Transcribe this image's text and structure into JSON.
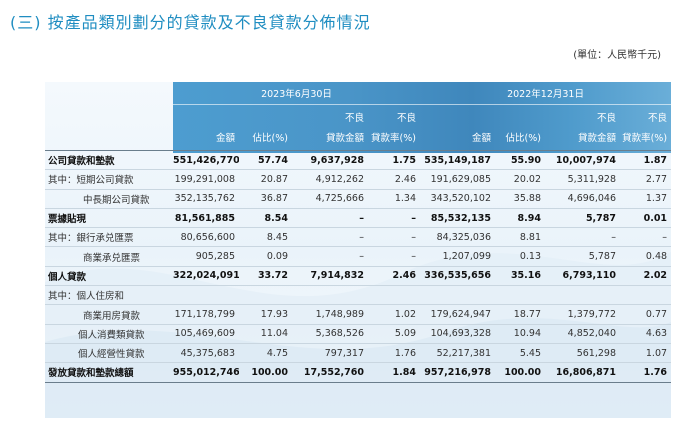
{
  "page": {
    "title": "(三) 按產品類別劃分的貸款及不良貸款分佈情況",
    "unit": "(單位：人民幣千元)"
  },
  "header": {
    "periods": [
      "2023年6月30日",
      "2022年12月31日"
    ],
    "top_labels": [
      "不良",
      "不良"
    ],
    "columns": [
      "金額",
      "佔比(%)",
      "貸款金額",
      "貸款率(%)"
    ]
  },
  "rows": [
    {
      "label": "公司貸款和墊款",
      "bold": true,
      "indent": 0,
      "values": [
        "551,426,770",
        "57.74",
        "9,637,928",
        "1.75",
        "535,149,187",
        "55.90",
        "10,007,974",
        "1.87"
      ]
    },
    {
      "label": "其中：短期公司貸款",
      "bold": false,
      "indent": 1,
      "values": [
        "199,291,008",
        "20.87",
        "4,912,262",
        "2.46",
        "191,629,085",
        "20.02",
        "5,311,928",
        "2.77"
      ]
    },
    {
      "label": "中長期公司貸款",
      "bold": false,
      "indent": 2,
      "values": [
        "352,135,762",
        "36.87",
        "4,725,666",
        "1.34",
        "343,520,102",
        "35.88",
        "4,696,046",
        "1.37"
      ]
    },
    {
      "label": "票據貼現",
      "bold": true,
      "indent": 0,
      "values": [
        "81,561,885",
        "8.54",
        "–",
        "–",
        "85,532,135",
        "8.94",
        "5,787",
        "0.01"
      ]
    },
    {
      "label": "其中：銀行承兑匯票",
      "bold": false,
      "indent": 1,
      "values": [
        "80,656,600",
        "8.45",
        "–",
        "–",
        "84,325,036",
        "8.81",
        "–",
        "–"
      ]
    },
    {
      "label": "商業承兑匯票",
      "bold": false,
      "indent": 2,
      "values": [
        "905,285",
        "0.09",
        "–",
        "–",
        "1,207,099",
        "0.13",
        "5,787",
        "0.48"
      ]
    },
    {
      "label": "個人貸款",
      "bold": true,
      "indent": 0,
      "values": [
        "322,024,091",
        "33.72",
        "7,914,832",
        "2.46",
        "336,535,656",
        "35.16",
        "6,793,110",
        "2.02"
      ]
    },
    {
      "label": "其中：個人住房和",
      "bold": false,
      "indent": 1,
      "values": [
        "",
        "",
        "",
        "",
        "",
        "",
        "",
        ""
      ]
    },
    {
      "label": "商業用房貸款",
      "bold": false,
      "indent": 2,
      "values": [
        "171,178,799",
        "17.93",
        "1,748,989",
        "1.02",
        "179,624,947",
        "18.77",
        "1,379,772",
        "0.77"
      ]
    },
    {
      "label": "個人消費類貸款",
      "bold": false,
      "indent": 3,
      "values": [
        "105,469,609",
        "11.04",
        "5,368,526",
        "5.09",
        "104,693,328",
        "10.94",
        "4,852,040",
        "4.63"
      ]
    },
    {
      "label": "個人經營性貸款",
      "bold": false,
      "indent": 3,
      "values": [
        "45,375,683",
        "4.75",
        "797,317",
        "1.76",
        "52,217,381",
        "5.45",
        "561,298",
        "1.07"
      ]
    },
    {
      "label": "發放貸款和墊款總額",
      "bold": true,
      "indent": 0,
      "values": [
        "955,012,746",
        "100.00",
        "17,552,760",
        "1.84",
        "957,216,978",
        "100.00",
        "16,806,871",
        "1.76"
      ]
    }
  ]
}
